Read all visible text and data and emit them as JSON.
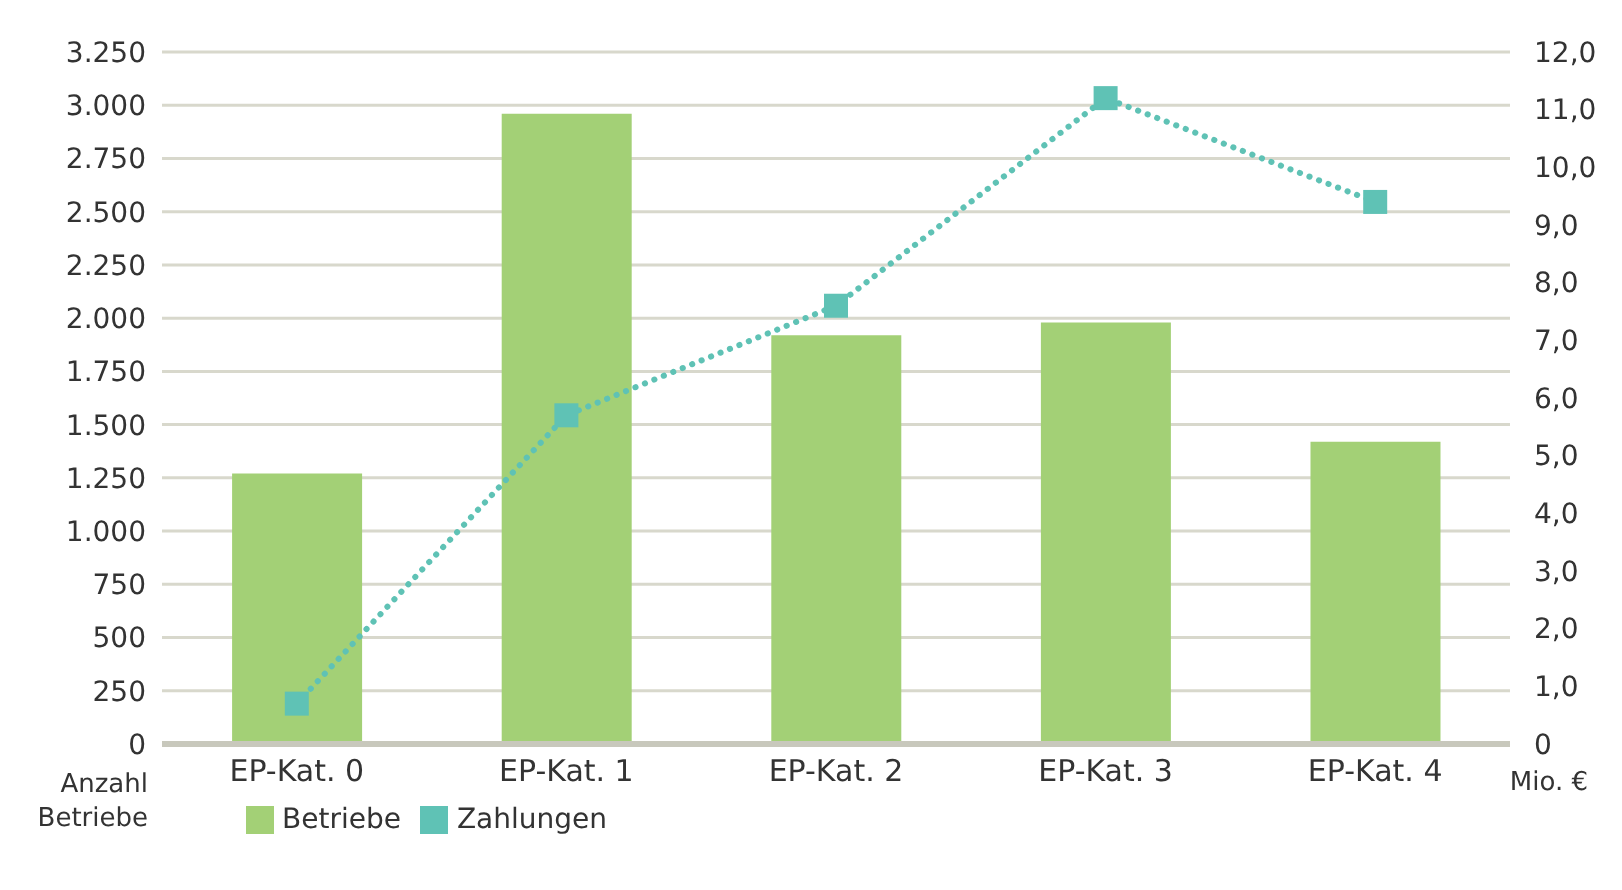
{
  "chart_data": {
    "type": "bar",
    "categories": [
      "EP-Kat. 0",
      "EP-Kat. 1",
      "EP-Kat. 2",
      "EP-Kat. 3",
      "EP-Kat. 4"
    ],
    "series": [
      {
        "name": "Betriebe",
        "type": "bar",
        "color": "#a3d076",
        "values": [
          1270,
          2960,
          1920,
          1980,
          1420
        ]
      },
      {
        "name": "Zahlungen",
        "type": "line",
        "axis": "y2",
        "color": "#5fc2b5",
        "values": [
          0.7,
          5.7,
          7.6,
          11.2,
          9.4
        ],
        "marker": "square",
        "line_style": "dotted"
      }
    ],
    "ylabel": "Anzahl Betriebe",
    "y2label": "Mio. €",
    "ylim": [
      0,
      3250
    ],
    "yticks": [
      {
        "value": 0,
        "label": "0"
      },
      {
        "value": 250,
        "label": "250"
      },
      {
        "value": 500,
        "label": "500"
      },
      {
        "value": 750,
        "label": "750"
      },
      {
        "value": 1000,
        "label": "1.000"
      },
      {
        "value": 1250,
        "label": "1.250"
      },
      {
        "value": 1500,
        "label": "1.500"
      },
      {
        "value": 1750,
        "label": "1.750"
      },
      {
        "value": 2000,
        "label": "2.000"
      },
      {
        "value": 2250,
        "label": "2.250"
      },
      {
        "value": 2500,
        "label": "2.500"
      },
      {
        "value": 2750,
        "label": "2.750"
      },
      {
        "value": 3000,
        "label": "3.000"
      },
      {
        "value": 3250,
        "label": "3.250"
      }
    ],
    "y2lim": [
      0,
      12
    ],
    "y2ticks": [
      0,
      {
        "value": 1,
        "label": "1,0"
      },
      {
        "value": 2,
        "label": "2,0"
      },
      {
        "value": 3,
        "label": "3,0"
      },
      {
        "value": 4,
        "label": "4,0"
      },
      {
        "value": 5,
        "label": "5,0"
      },
      {
        "value": 6,
        "label": "6,0"
      },
      {
        "value": 7,
        "label": "7,0"
      },
      {
        "value": 8,
        "label": "8,0"
      },
      {
        "value": 9,
        "label": "9,0"
      },
      {
        "value": 10,
        "label": "10,0"
      },
      {
        "value": 11,
        "label": "11,0"
      },
      {
        "value": 12,
        "label": "12,0"
      }
    ],
    "grid": "y",
    "legend": "bottom left"
  }
}
